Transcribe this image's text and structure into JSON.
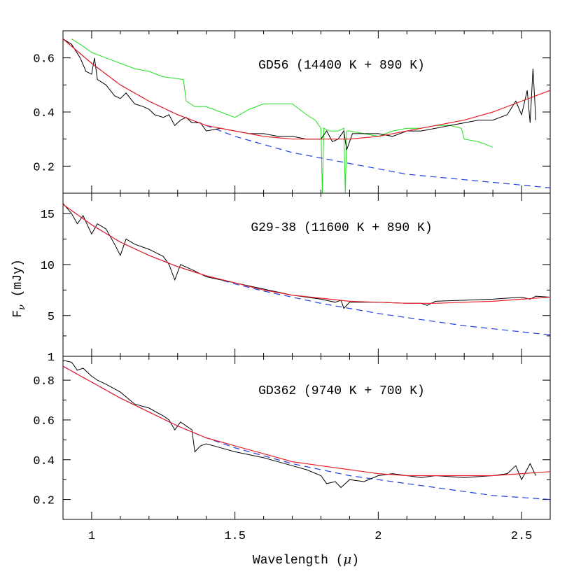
{
  "colors": {
    "observed": "#000000",
    "model_total": "#e8202a",
    "white_dwarf_model": "#1f3ee0",
    "comparison_spectrum": "#22e01e"
  },
  "chart_data": {
    "type": "line",
    "xlabel_parts": [
      "Wavelength (",
      "μ",
      ")"
    ],
    "ylabel_parts": [
      "F",
      "ν",
      " (mJy)"
    ],
    "xlim": [
      0.9,
      2.6
    ],
    "xticks": [
      1,
      1.5,
      2,
      2.5
    ],
    "xtick_labels": [
      "1",
      "1.5",
      "2",
      "2.5"
    ],
    "shared_x_axis": true,
    "grid": false,
    "legend": "none",
    "panels": [
      {
        "label": "GD56 (14400 K + 890 K)",
        "ylim": [
          0.1,
          0.7
        ],
        "yticks": [
          0.2,
          0.4,
          0.6
        ],
        "ytick_labels": [
          "0.2",
          "0.4",
          "0.6"
        ],
        "series": [
          {
            "role": "observed",
            "style": "solid-black",
            "x": [
              0.9,
              0.93,
              0.96,
              0.98,
              1.0,
              1.01,
              1.02,
              1.05,
              1.08,
              1.1,
              1.12,
              1.15,
              1.18,
              1.2,
              1.22,
              1.25,
              1.27,
              1.29,
              1.31,
              1.33,
              1.35,
              1.38,
              1.4,
              1.45,
              1.5,
              1.55,
              1.6,
              1.65,
              1.7,
              1.75,
              1.8,
              1.82,
              1.84,
              1.86,
              1.88,
              1.89,
              1.91,
              1.95,
              2.0,
              2.05,
              2.1,
              2.15,
              2.2,
              2.25,
              2.3,
              2.35,
              2.4,
              2.45,
              2.48,
              2.5,
              2.52,
              2.53,
              2.54,
              2.55
            ],
            "y": [
              0.67,
              0.65,
              0.6,
              0.55,
              0.54,
              0.6,
              0.52,
              0.5,
              0.46,
              0.45,
              0.47,
              0.43,
              0.42,
              0.41,
              0.39,
              0.38,
              0.39,
              0.35,
              0.37,
              0.38,
              0.36,
              0.36,
              0.33,
              0.34,
              0.33,
              0.32,
              0.32,
              0.31,
              0.31,
              0.3,
              0.3,
              0.33,
              0.29,
              0.3,
              0.33,
              0.26,
              0.32,
              0.32,
              0.32,
              0.31,
              0.33,
              0.33,
              0.34,
              0.35,
              0.36,
              0.37,
              0.37,
              0.39,
              0.44,
              0.39,
              0.48,
              0.36,
              0.56,
              0.37
            ]
          },
          {
            "role": "comparison",
            "style": "solid-green",
            "x": [
              0.93,
              0.96,
              1.0,
              1.05,
              1.1,
              1.15,
              1.2,
              1.25,
              1.32,
              1.33,
              1.36,
              1.4,
              1.45,
              1.5,
              1.55,
              1.6,
              1.65,
              1.7,
              1.75,
              1.78,
              1.8,
              1.805,
              1.81,
              1.83,
              1.86,
              1.88,
              1.885,
              1.89,
              1.9,
              1.95,
              2.0,
              2.05,
              2.1,
              2.15,
              2.2,
              2.25,
              2.29,
              2.3,
              2.35,
              2.4
            ],
            "y": [
              0.67,
              0.65,
              0.62,
              0.6,
              0.58,
              0.56,
              0.55,
              0.53,
              0.52,
              0.44,
              0.42,
              0.42,
              0.4,
              0.38,
              0.41,
              0.43,
              0.43,
              0.43,
              0.39,
              0.37,
              0.34,
              0.1,
              0.34,
              0.33,
              0.33,
              0.34,
              0.1,
              0.33,
              0.33,
              0.32,
              0.31,
              0.33,
              0.34,
              0.34,
              0.35,
              0.35,
              0.34,
              0.3,
              0.29,
              0.27
            ]
          },
          {
            "role": "model_total",
            "style": "solid-red",
            "x": [
              0.9,
              1.0,
              1.1,
              1.2,
              1.3,
              1.4,
              1.5,
              1.6,
              1.7,
              1.8,
              1.9,
              2.0,
              2.1,
              2.2,
              2.3,
              2.4,
              2.5,
              2.6
            ],
            "y": [
              0.67,
              0.58,
              0.5,
              0.44,
              0.39,
              0.35,
              0.33,
              0.31,
              0.3,
              0.3,
              0.3,
              0.31,
              0.33,
              0.35,
              0.37,
              0.4,
              0.44,
              0.48
            ]
          },
          {
            "role": "white_dwarf_model",
            "style": "dashed-blue",
            "x": [
              0.9,
              1.0,
              1.1,
              1.2,
              1.3,
              1.4,
              1.5,
              1.6,
              1.7,
              1.8,
              1.9,
              2.0,
              2.1,
              2.2,
              2.3,
              2.4,
              2.5,
              2.6
            ],
            "y": [
              0.67,
              0.58,
              0.5,
              0.44,
              0.39,
              0.35,
              0.31,
              0.28,
              0.25,
              0.23,
              0.21,
              0.19,
              0.17,
              0.16,
              0.15,
              0.14,
              0.13,
              0.12
            ]
          }
        ]
      },
      {
        "label": "G29-38 (11600 K + 890 K)",
        "ylim": [
          1,
          17
        ],
        "yticks": [
          1,
          5,
          10,
          15
        ],
        "ytick_labels": [
          "1",
          "5",
          "10",
          "15"
        ],
        "series": [
          {
            "role": "observed",
            "style": "solid-black",
            "x": [
              0.9,
              0.93,
              0.95,
              0.97,
              1.0,
              1.02,
              1.05,
              1.08,
              1.1,
              1.12,
              1.15,
              1.2,
              1.25,
              1.27,
              1.29,
              1.31,
              1.35,
              1.4,
              1.5,
              1.6,
              1.7,
              1.8,
              1.85,
              1.87,
              1.88,
              1.9,
              2.0,
              2.1,
              2.15,
              2.17,
              2.2,
              2.3,
              2.4,
              2.5,
              2.53,
              2.55,
              2.6
            ],
            "y": [
              16,
              15,
              14,
              14.8,
              13,
              14,
              13.5,
              12,
              10.9,
              12.5,
              12,
              11.5,
              10.8,
              10,
              8.5,
              10,
              9.5,
              8.8,
              8.2,
              7.6,
              7.0,
              6.6,
              6.3,
              6.5,
              5.7,
              6.3,
              6.3,
              6.2,
              6.2,
              6.0,
              6.4,
              6.5,
              6.6,
              6.8,
              6.6,
              6.9,
              6.8
            ]
          },
          {
            "role": "model_total",
            "style": "solid-red",
            "x": [
              0.9,
              1.0,
              1.1,
              1.2,
              1.3,
              1.4,
              1.5,
              1.6,
              1.7,
              1.8,
              1.9,
              2.0,
              2.1,
              2.2,
              2.3,
              2.4,
              2.5,
              2.6
            ],
            "y": [
              15.9,
              13.9,
              12.2,
              10.9,
              9.8,
              8.9,
              8.2,
              7.5,
              7.0,
              6.7,
              6.4,
              6.3,
              6.2,
              6.2,
              6.3,
              6.4,
              6.6,
              6.8
            ]
          },
          {
            "role": "white_dwarf_model",
            "style": "dashed-blue",
            "x": [
              0.9,
              1.0,
              1.1,
              1.2,
              1.3,
              1.4,
              1.5,
              1.6,
              1.7,
              1.8,
              1.9,
              2.0,
              2.1,
              2.2,
              2.3,
              2.4,
              2.5,
              2.6
            ],
            "y": [
              15.9,
              13.9,
              12.2,
              10.9,
              9.8,
              8.9,
              8.1,
              7.4,
              6.8,
              6.2,
              5.7,
              5.2,
              4.8,
              4.4,
              4.0,
              3.7,
              3.4,
              3.1
            ]
          }
        ]
      },
      {
        "label": "GD362 (9740 K + 700 K)",
        "ylim": [
          0.1,
          0.92
        ],
        "yticks": [
          0.2,
          0.4,
          0.6,
          0.8
        ],
        "ytick_labels": [
          "0.2",
          "0.4",
          "0.6",
          "0.8"
        ],
        "series": [
          {
            "role": "observed",
            "style": "solid-black",
            "x": [
              0.9,
              0.93,
              0.95,
              0.97,
              1.0,
              1.02,
              1.05,
              1.1,
              1.15,
              1.2,
              1.25,
              1.27,
              1.29,
              1.31,
              1.35,
              1.36,
              1.38,
              1.4,
              1.45,
              1.5,
              1.6,
              1.7,
              1.75,
              1.8,
              1.82,
              1.85,
              1.87,
              1.9,
              1.95,
              2.0,
              2.05,
              2.1,
              2.15,
              2.2,
              2.3,
              2.4,
              2.45,
              2.48,
              2.5,
              2.53,
              2.55
            ],
            "y": [
              0.9,
              0.89,
              0.85,
              0.86,
              0.82,
              0.8,
              0.78,
              0.74,
              0.68,
              0.66,
              0.62,
              0.6,
              0.55,
              0.59,
              0.55,
              0.44,
              0.47,
              0.48,
              0.46,
              0.44,
              0.41,
              0.37,
              0.35,
              0.32,
              0.28,
              0.29,
              0.26,
              0.3,
              0.29,
              0.32,
              0.33,
              0.32,
              0.31,
              0.32,
              0.31,
              0.32,
              0.33,
              0.37,
              0.3,
              0.38,
              0.32
            ]
          },
          {
            "role": "model_total",
            "style": "solid-red",
            "x": [
              0.9,
              1.0,
              1.1,
              1.2,
              1.3,
              1.4,
              1.5,
              1.6,
              1.7,
              1.8,
              1.9,
              2.0,
              2.1,
              2.2,
              2.3,
              2.4,
              2.5,
              2.6
            ],
            "y": [
              0.87,
              0.79,
              0.71,
              0.64,
              0.57,
              0.51,
              0.47,
              0.43,
              0.39,
              0.37,
              0.35,
              0.33,
              0.32,
              0.32,
              0.32,
              0.32,
              0.33,
              0.34
            ]
          },
          {
            "role": "white_dwarf_model",
            "style": "dashed-blue",
            "x": [
              0.9,
              1.0,
              1.1,
              1.2,
              1.3,
              1.4,
              1.5,
              1.6,
              1.7,
              1.8,
              1.9,
              2.0,
              2.1,
              2.2,
              2.3,
              2.4,
              2.5,
              2.6
            ],
            "y": [
              0.87,
              0.79,
              0.71,
              0.64,
              0.57,
              0.51,
              0.46,
              0.42,
              0.38,
              0.35,
              0.32,
              0.3,
              0.28,
              0.26,
              0.24,
              0.22,
              0.21,
              0.2
            ]
          }
        ]
      }
    ]
  }
}
